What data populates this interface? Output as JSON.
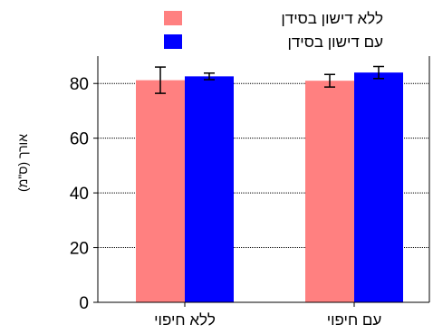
{
  "chart_data": {
    "type": "bar",
    "title": "",
    "xlabel": "",
    "ylabel": "אורך (ס\"מ)",
    "ylim": [
      0,
      90
    ],
    "yticks": [
      0,
      20,
      40,
      60,
      80
    ],
    "grid": "horizontal dotted",
    "legend_position": "top-right",
    "categories": [
      "ללא חיפוי",
      "עם חיפוי"
    ],
    "series": [
      {
        "name": "ללא דישון בסידן",
        "color": "#ff8080",
        "values": [
          81.2,
          81.0
        ],
        "error": [
          4.8,
          2.3
        ]
      },
      {
        "name": "עם דישון בסידן",
        "color": "#0000ff",
        "values": [
          82.6,
          84.0
        ],
        "error": [
          1.2,
          2.2
        ]
      }
    ]
  }
}
